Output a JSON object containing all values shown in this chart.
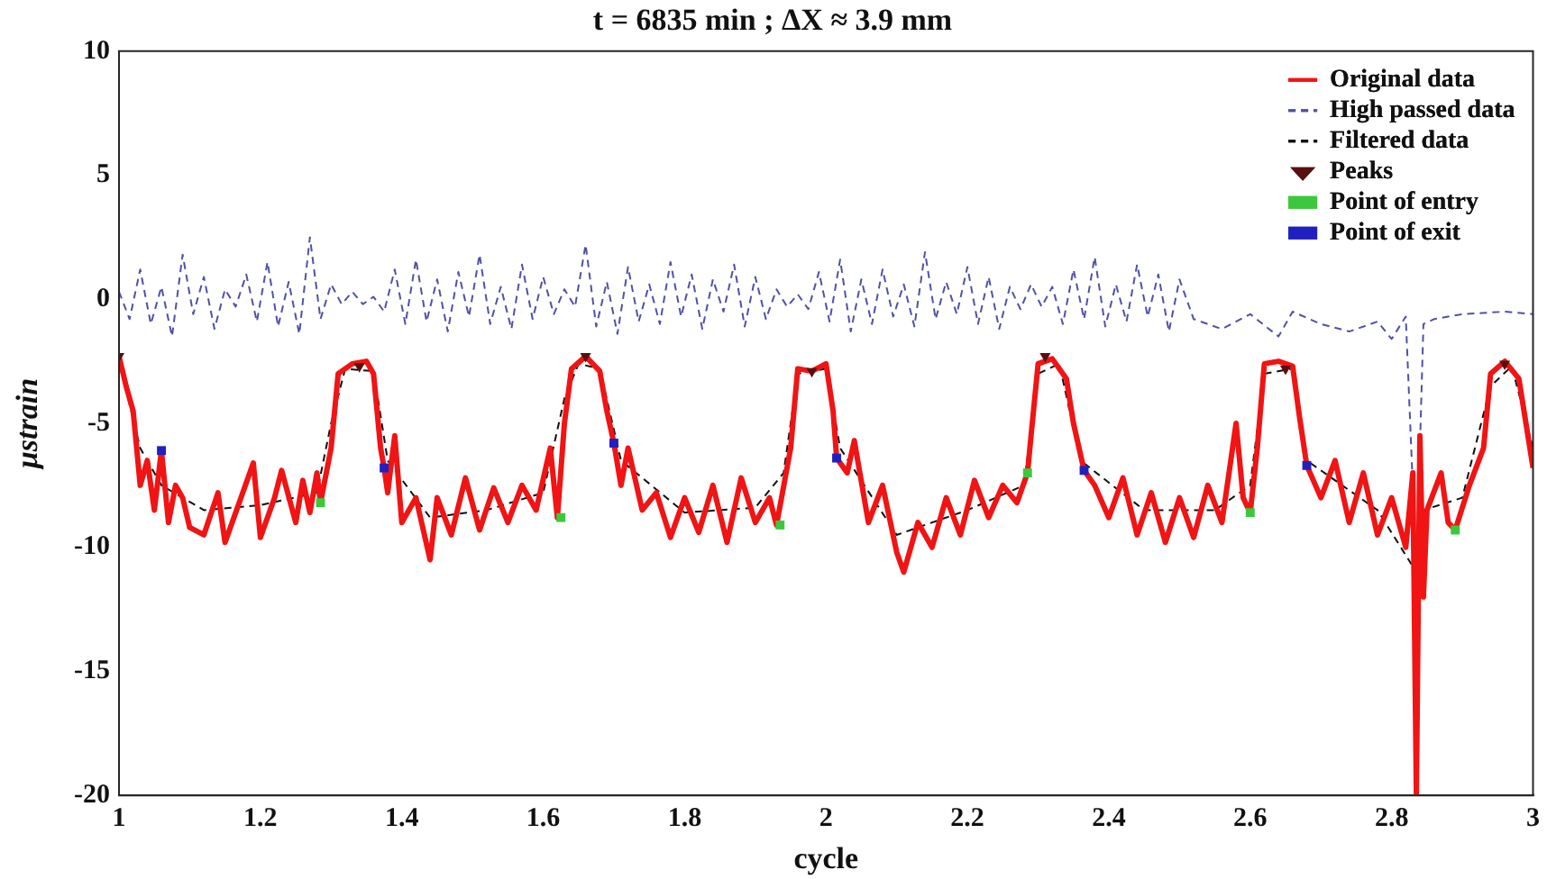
{
  "chart_data": {
    "type": "line",
    "title": "t = 6835 min ; ΔX ≈ 3.9 mm",
    "xlabel": "cycle",
    "ylabel": "μstrain",
    "xlim": [
      1,
      3
    ],
    "xticks": [
      1,
      1.2,
      1.4,
      1.6,
      1.8,
      2,
      2.2,
      2.4,
      2.6,
      2.8,
      3
    ],
    "ylim": [
      -20,
      10
    ],
    "yticks": [
      -20,
      -15,
      -10,
      -5,
      0,
      5,
      10
    ],
    "grid": false,
    "legend": "top right",
    "series": [
      {
        "name": "Original data",
        "type": "line",
        "line_style": "solid",
        "color": "#f01414",
        "x": [
          1.0,
          1.01,
          1.02,
          1.03,
          1.04,
          1.05,
          1.06,
          1.07,
          1.08,
          1.09,
          1.1,
          1.12,
          1.14,
          1.15,
          1.17,
          1.19,
          1.2,
          1.22,
          1.23,
          1.25,
          1.26,
          1.27,
          1.28,
          1.285,
          1.3,
          1.31,
          1.33,
          1.35,
          1.36,
          1.37,
          1.375,
          1.38,
          1.39,
          1.4,
          1.42,
          1.44,
          1.45,
          1.47,
          1.49,
          1.51,
          1.53,
          1.55,
          1.57,
          1.59,
          1.61,
          1.62,
          1.63,
          1.64,
          1.66,
          1.68,
          1.69,
          1.7,
          1.71,
          1.72,
          1.74,
          1.76,
          1.78,
          1.8,
          1.82,
          1.84,
          1.86,
          1.88,
          1.9,
          1.92,
          1.93,
          1.95,
          1.96,
          1.98,
          2.0,
          2.01,
          2.015,
          2.03,
          2.04,
          2.06,
          2.08,
          2.1,
          2.11,
          2.13,
          2.15,
          2.17,
          2.19,
          2.21,
          2.23,
          2.25,
          2.27,
          2.285,
          2.29,
          2.3,
          2.32,
          2.34,
          2.35,
          2.365,
          2.38,
          2.4,
          2.42,
          2.44,
          2.46,
          2.48,
          2.5,
          2.52,
          2.54,
          2.56,
          2.58,
          2.59,
          2.6,
          2.61,
          2.62,
          2.64,
          2.66,
          2.67,
          2.68,
          2.7,
          2.72,
          2.74,
          2.76,
          2.78,
          2.8,
          2.82,
          2.83,
          2.835,
          2.84,
          2.845,
          2.85,
          2.87,
          2.88,
          2.89,
          2.91,
          2.93,
          2.94,
          2.96,
          2.98,
          2.99,
          3.0
        ],
        "values": [
          -2.3,
          -3.5,
          -4.5,
          -7.5,
          -6.5,
          -8.5,
          -6.1,
          -9.0,
          -7.5,
          -8.0,
          -9.2,
          -9.5,
          -7.8,
          -9.8,
          -8.2,
          -6.6,
          -9.6,
          -8.0,
          -6.9,
          -9.0,
          -7.3,
          -8.6,
          -7.0,
          -8.2,
          -6.0,
          -3.0,
          -2.6,
          -2.5,
          -3.0,
          -6.0,
          -6.8,
          -7.8,
          -5.5,
          -9.0,
          -8.0,
          -10.5,
          -8.0,
          -9.5,
          -7.2,
          -9.3,
          -7.6,
          -9.0,
          -7.5,
          -8.5,
          -6.0,
          -8.8,
          -5.0,
          -2.8,
          -2.3,
          -2.9,
          -4.5,
          -5.8,
          -7.5,
          -6.0,
          -8.5,
          -7.8,
          -9.6,
          -8.0,
          -9.4,
          -7.5,
          -9.8,
          -7.2,
          -9.0,
          -8.0,
          -9.1,
          -6.0,
          -2.8,
          -2.9,
          -2.6,
          -4.5,
          -6.4,
          -7.0,
          -5.7,
          -9.0,
          -7.5,
          -10.2,
          -11.0,
          -9.0,
          -10.0,
          -8.0,
          -9.5,
          -7.3,
          -8.8,
          -7.5,
          -8.2,
          -7.0,
          -5.5,
          -2.6,
          -2.4,
          -3.2,
          -5.0,
          -6.9,
          -7.5,
          -8.8,
          -7.2,
          -9.5,
          -7.8,
          -9.8,
          -8.0,
          -9.6,
          -7.5,
          -9.0,
          -5.0,
          -8.0,
          -8.6,
          -6.0,
          -2.6,
          -2.5,
          -2.7,
          -4.8,
          -6.7,
          -8.0,
          -6.5,
          -9.0,
          -7.0,
          -9.5,
          -8.0,
          -10.0,
          -7.0,
          -20,
          -5.5,
          -12,
          -8.5,
          -7.0,
          -9.0,
          -9.3,
          -7.5,
          -6.0,
          -3.0,
          -2.5,
          -3.2,
          -5.0,
          -6.8
        ]
      },
      {
        "name": "High passed data",
        "type": "line",
        "line_style": "dashed",
        "color": "#5050a8",
        "x": [
          1,
          1.015,
          1.03,
          1.045,
          1.06,
          1.075,
          1.09,
          1.105,
          1.12,
          1.135,
          1.15,
          1.165,
          1.18,
          1.195,
          1.21,
          1.225,
          1.24,
          1.255,
          1.27,
          1.285,
          1.3,
          1.315,
          1.33,
          1.345,
          1.36,
          1.375,
          1.39,
          1.405,
          1.42,
          1.435,
          1.45,
          1.465,
          1.48,
          1.495,
          1.51,
          1.525,
          1.54,
          1.555,
          1.57,
          1.585,
          1.6,
          1.615,
          1.63,
          1.645,
          1.66,
          1.675,
          1.69,
          1.705,
          1.72,
          1.735,
          1.75,
          1.765,
          1.78,
          1.795,
          1.81,
          1.825,
          1.84,
          1.855,
          1.87,
          1.885,
          1.9,
          1.915,
          1.93,
          1.945,
          1.96,
          1.975,
          1.99,
          2.005,
          2.02,
          2.035,
          2.05,
          2.065,
          2.08,
          2.095,
          2.11,
          2.125,
          2.14,
          2.155,
          2.17,
          2.185,
          2.2,
          2.215,
          2.23,
          2.245,
          2.26,
          2.275,
          2.29,
          2.305,
          2.32,
          2.335,
          2.35,
          2.365,
          2.38,
          2.395,
          2.41,
          2.425,
          2.44,
          2.455,
          2.47,
          2.485,
          2.5,
          2.52,
          2.56,
          2.6,
          2.64,
          2.66,
          2.7,
          2.74,
          2.78,
          2.8,
          2.82,
          2.835,
          2.845,
          2.86,
          2.9,
          2.96,
          3.0
        ],
        "values": [
          0.3,
          -0.8,
          1.2,
          -1.0,
          0.5,
          -1.5,
          1.8,
          -0.6,
          0.9,
          -1.2,
          0.4,
          -0.3,
          1.0,
          -0.9,
          1.5,
          -1.1,
          0.7,
          -1.4,
          2.5,
          -0.8,
          0.6,
          -0.2,
          0.3,
          -0.2,
          0.1,
          -0.5,
          1.2,
          -1.0,
          1.6,
          -0.9,
          0.8,
          -1.3,
          1.1,
          -0.7,
          1.8,
          -1.0,
          0.5,
          -1.2,
          1.4,
          -0.8,
          0.9,
          -0.6,
          0.4,
          -0.3,
          2.2,
          -1.1,
          0.7,
          -1.4,
          1.3,
          -0.9,
          0.6,
          -1.0,
          1.5,
          -0.7,
          1.0,
          -1.2,
          0.8,
          -0.5,
          1.4,
          -1.1,
          0.9,
          -0.8,
          0.4,
          -0.3,
          0.2,
          -0.4,
          1.1,
          -0.9,
          1.6,
          -1.3,
          0.8,
          -1.0,
          1.2,
          -0.7,
          0.6,
          -1.1,
          1.9,
          -0.8,
          0.7,
          -0.6,
          1.3,
          -1.0,
          0.9,
          -1.2,
          0.5,
          -0.4,
          0.6,
          -0.3,
          0.5,
          -1.0,
          1.2,
          -0.8,
          1.7,
          -1.1,
          0.6,
          -0.9,
          1.4,
          -0.7,
          1.0,
          -1.3,
          0.8,
          -0.8,
          -1.2,
          -0.6,
          -1.5,
          -0.5,
          -1.0,
          -1.3,
          -0.9,
          -1.6,
          -0.7,
          -11,
          -1.0,
          -0.8,
          -0.6,
          -0.5,
          -0.6
        ]
      },
      {
        "name": "Filtered data",
        "type": "line",
        "line_style": "dashed",
        "color": "#101010",
        "x": [
          1.0,
          1.03,
          1.06,
          1.12,
          1.2,
          1.28,
          1.3,
          1.32,
          1.36,
          1.38,
          1.44,
          1.52,
          1.6,
          1.63,
          1.65,
          1.68,
          1.71,
          1.8,
          1.9,
          1.94,
          1.96,
          2.0,
          2.02,
          2.1,
          2.2,
          2.28,
          2.3,
          2.33,
          2.36,
          2.45,
          2.55,
          2.6,
          2.62,
          2.66,
          2.68,
          2.78,
          2.835,
          2.845,
          2.9,
          2.94,
          2.97,
          3.0
        ],
        "values": [
          -2.5,
          -6,
          -7.5,
          -8.5,
          -8.3,
          -7.8,
          -5,
          -2.8,
          -2.9,
          -6.5,
          -8.8,
          -8.5,
          -7.8,
          -4,
          -2.6,
          -2.8,
          -6.5,
          -8.6,
          -8.4,
          -7,
          -3,
          -2.8,
          -6,
          -9.5,
          -8.5,
          -7.5,
          -3,
          -2.6,
          -6.5,
          -8.5,
          -8.5,
          -7.5,
          -3,
          -2.8,
          -6.5,
          -8.5,
          -11,
          -8.5,
          -8,
          -3.5,
          -2.7,
          -6
        ]
      },
      {
        "name": "Peaks",
        "type": "scatter",
        "marker": "triangle",
        "color": "#5a0f0f",
        "x": [
          1.0,
          1.34,
          1.66,
          1.98,
          2.31,
          2.65,
          2.96
        ],
        "values": [
          -2.3,
          -2.7,
          -2.3,
          -2.9,
          -2.3,
          -2.8,
          -2.6
        ]
      },
      {
        "name": "Point of entry",
        "type": "scatter",
        "marker": "square",
        "color": "#3cc83c",
        "x": [
          1.285,
          1.625,
          1.935,
          2.285,
          2.6,
          2.89
        ],
        "values": [
          -8.2,
          -8.8,
          -9.1,
          -7.0,
          -8.6,
          -9.3
        ]
      },
      {
        "name": "Point of exit",
        "type": "scatter",
        "marker": "square",
        "color": "#2020c0",
        "x": [
          1.06,
          1.375,
          1.7,
          2.015,
          2.365,
          2.68
        ],
        "values": [
          -6.1,
          -6.8,
          -5.8,
          -6.4,
          -6.9,
          -6.7
        ]
      }
    ]
  }
}
